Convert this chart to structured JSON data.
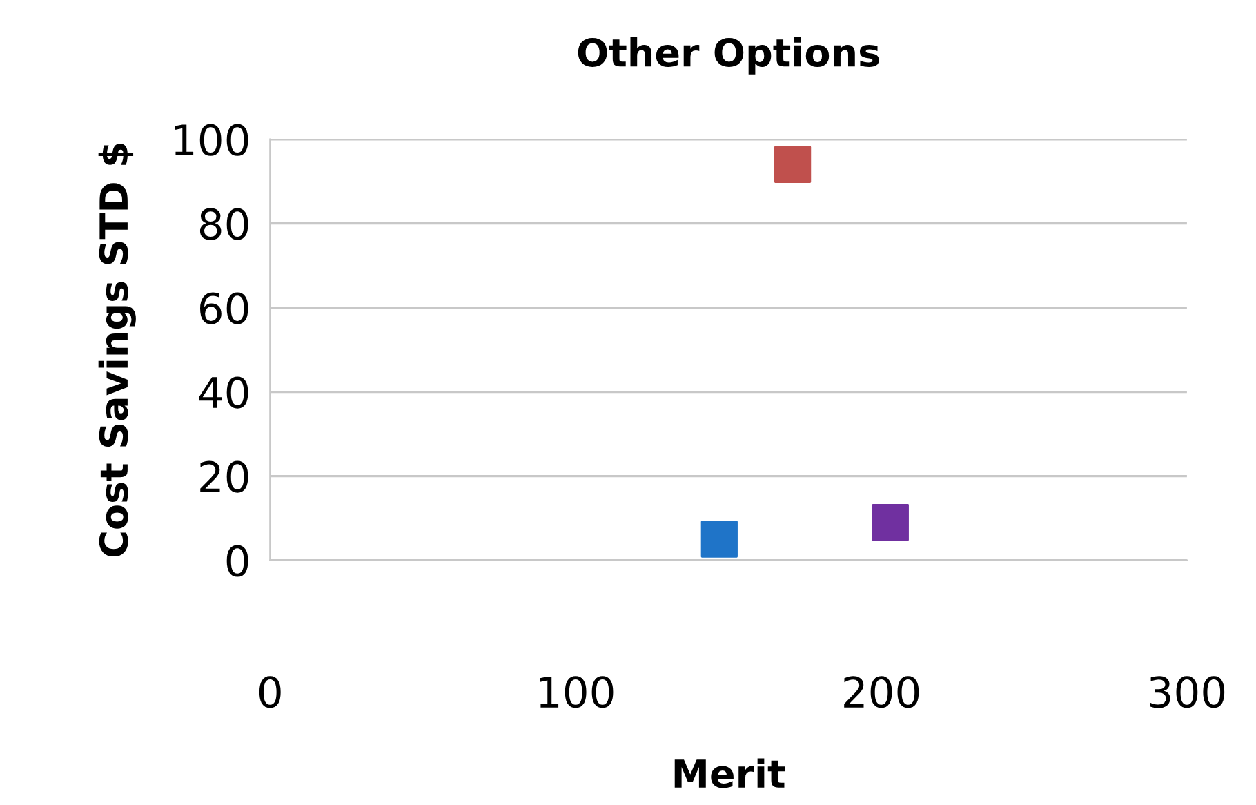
{
  "chart_data": {
    "type": "scatter",
    "title": "Other Options",
    "xlabel": "Merit",
    "ylabel": "Cost Savings STD $",
    "x": [
      147,
      171,
      203
    ],
    "values": [
      5,
      94,
      9
    ],
    "colors": [
      "#1f74c8",
      "#c0504d",
      "#7030a0"
    ],
    "marker": "square",
    "xlim": [
      0,
      300
    ],
    "xticks": [
      0,
      100,
      200,
      300
    ],
    "ylim": [
      0,
      100
    ],
    "yticks": [
      0,
      20,
      40,
      60,
      80,
      100
    ],
    "grid": "y"
  }
}
